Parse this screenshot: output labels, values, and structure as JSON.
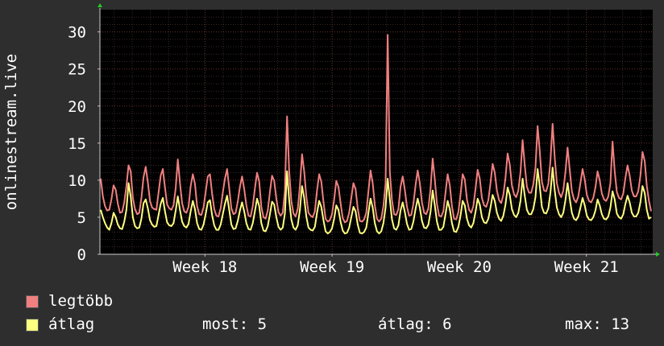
{
  "chart_data": {
    "type": "line",
    "ylabel": "onlinestream.live",
    "yticks": [
      0,
      5,
      10,
      15,
      20,
      25,
      30
    ],
    "ylim": [
      0,
      33
    ],
    "xlim": [
      0,
      100
    ],
    "xticks": [
      {
        "label": "Week 18",
        "x": 19
      },
      {
        "label": "Week 19",
        "x": 42
      },
      {
        "label": "Week 20",
        "x": 65
      },
      {
        "label": "Week 21",
        "x": 88
      }
    ],
    "grid": true,
    "legend_placement": "bottom-left",
    "series": [
      {
        "name": "legtöbb",
        "color": "#f08080",
        "values": [
          10.2,
          7.8,
          6.5,
          5.9,
          6.0,
          7.4,
          9.3,
          8.7,
          6.8,
          5.6,
          5.7,
          7.0,
          9.2,
          12.0,
          11.2,
          7.6,
          6.1,
          5.4,
          5.6,
          7.6,
          10.4,
          11.8,
          9.7,
          7.2,
          6.3,
          6.1,
          6.0,
          8.3,
          10.6,
          11.5,
          9.0,
          6.7,
          6.2,
          6.0,
          6.6,
          8.9,
          12.8,
          9.6,
          6.9,
          5.8,
          5.6,
          6.4,
          9.2,
          10.8,
          9.5,
          6.5,
          5.4,
          5.3,
          6.3,
          8.4,
          10.5,
          10.8,
          8.2,
          6.1,
          5.2,
          5.1,
          6.2,
          8.3,
          10.2,
          11.5,
          8.9,
          6.2,
          5.4,
          5.6,
          7.1,
          9.1,
          10.5,
          8.8,
          6.6,
          5.2,
          5.1,
          6.5,
          8.9,
          11.0,
          9.8,
          6.4,
          5.0,
          4.8,
          5.9,
          8.4,
          10.6,
          9.9,
          7.5,
          5.7,
          5.2,
          5.6,
          8.6,
          18.6,
          11.2,
          7.2,
          5.5,
          5.1,
          6.1,
          9.2,
          13.5,
          11.2,
          7.8,
          5.6,
          5.2,
          5.0,
          5.8,
          8.6,
          10.8,
          9.8,
          7.1,
          4.8,
          4.4,
          4.6,
          5.4,
          7.4,
          9.9,
          9.1,
          6.9,
          4.9,
          4.3,
          4.5,
          5.6,
          7.6,
          9.6,
          8.8,
          6.2,
          4.5,
          4.4,
          4.7,
          5.6,
          8.5,
          11.3,
          9.6,
          6.6,
          4.8,
          4.4,
          4.8,
          6.5,
          9.5,
          29.6,
          11.1,
          7.3,
          5.4,
          5.3,
          6.1,
          9.1,
          10.5,
          8.7,
          6.4,
          5.2,
          5.3,
          6.8,
          9.3,
          11.3,
          9.6,
          7.0,
          5.6,
          5.4,
          6.2,
          8.8,
          12.9,
          10.1,
          6.8,
          5.2,
          5.1,
          5.8,
          8.3,
          10.8,
          9.3,
          6.5,
          4.8,
          4.7,
          5.7,
          8.0,
          10.8,
          10.1,
          7.4,
          6.0,
          5.6,
          6.5,
          8.8,
          11.4,
          10.2,
          7.6,
          6.6,
          6.4,
          7.3,
          9.6,
          12.2,
          11.0,
          8.6,
          7.3,
          6.9,
          8.0,
          10.3,
          13.6,
          12.1,
          9.3,
          8.1,
          7.7,
          8.6,
          11.0,
          15.4,
          12.0,
          9.1,
          8.3,
          8.3,
          9.4,
          11.7,
          17.3,
          13.9,
          9.8,
          8.6,
          8.5,
          9.5,
          12.6,
          17.6,
          13.0,
          9.6,
          8.3,
          7.7,
          8.6,
          11.1,
          14.4,
          11.4,
          8.5,
          7.4,
          7.0,
          7.8,
          9.6,
          11.5,
          10.1,
          8.0,
          7.2,
          7.0,
          7.6,
          9.0,
          11.2,
          10.0,
          8.2,
          7.4,
          7.2,
          7.8,
          9.6,
          15.2,
          11.2,
          8.4,
          7.6,
          7.4,
          8.2,
          10.3,
          12.0,
          10.6,
          8.6,
          7.8,
          7.8,
          8.5,
          10.6,
          13.8,
          12.6,
          9.2,
          7.2,
          5.8
        ]
      },
      {
        "name": "átlag",
        "color": "#ffff80",
        "values": [
          6.0,
          5.0,
          4.2,
          3.6,
          3.3,
          4.2,
          5.6,
          5.0,
          4.0,
          3.5,
          3.4,
          4.4,
          6.0,
          9.6,
          7.8,
          5.0,
          3.8,
          3.5,
          3.6,
          4.8,
          6.9,
          7.4,
          6.2,
          4.6,
          4.0,
          3.7,
          3.8,
          5.3,
          6.8,
          7.6,
          5.8,
          4.3,
          3.9,
          3.8,
          4.2,
          5.9,
          7.8,
          6.0,
          4.4,
          3.8,
          3.6,
          4.1,
          5.8,
          7.2,
          6.1,
          4.2,
          3.4,
          3.3,
          4.0,
          5.4,
          7.0,
          7.3,
          5.3,
          3.9,
          3.3,
          3.3,
          4.0,
          5.4,
          6.8,
          7.9,
          6.0,
          4.0,
          3.4,
          3.5,
          4.5,
          5.9,
          7.0,
          5.8,
          4.2,
          3.4,
          3.3,
          4.2,
          5.8,
          7.5,
          6.5,
          4.2,
          3.2,
          3.1,
          3.8,
          5.4,
          7.1,
          6.7,
          5.0,
          3.7,
          3.3,
          3.6,
          5.5,
          11.2,
          7.3,
          4.7,
          3.6,
          3.3,
          3.9,
          6.0,
          9.2,
          7.6,
          5.1,
          3.6,
          3.3,
          3.2,
          3.7,
          5.6,
          7.2,
          6.4,
          4.6,
          3.1,
          2.8,
          3.0,
          3.5,
          4.8,
          6.6,
          6.0,
          4.4,
          3.2,
          2.8,
          2.9,
          3.6,
          5.0,
          6.4,
          5.8,
          4.0,
          2.9,
          2.8,
          3.0,
          3.6,
          5.6,
          7.5,
          6.3,
          4.2,
          3.1,
          2.8,
          3.1,
          4.2,
          6.3,
          10.2,
          7.4,
          4.7,
          3.5,
          3.3,
          3.9,
          5.9,
          7.0,
          5.7,
          4.1,
          3.3,
          3.4,
          4.4,
          6.1,
          7.5,
          6.3,
          4.5,
          3.6,
          3.5,
          4.0,
          5.7,
          8.6,
          6.6,
          4.4,
          3.3,
          3.3,
          3.7,
          5.4,
          7.2,
          6.1,
          4.2,
          3.1,
          3.0,
          3.7,
          5.2,
          7.2,
          6.6,
          4.8,
          3.9,
          3.6,
          4.2,
          5.7,
          7.5,
          6.7,
          5.0,
          4.3,
          4.2,
          4.8,
          6.3,
          8.0,
          7.2,
          5.6,
          4.8,
          4.5,
          5.2,
          6.7,
          9.0,
          8.0,
          6.1,
          5.3,
          5.0,
          5.6,
          7.2,
          10.2,
          7.9,
          6.0,
          5.4,
          5.4,
          6.1,
          7.7,
          11.5,
          9.2,
          6.4,
          5.6,
          5.5,
          6.2,
          8.3,
          11.7,
          8.6,
          6.3,
          5.4,
          5.0,
          5.6,
          7.3,
          9.6,
          7.5,
          5.6,
          4.8,
          4.6,
          5.1,
          6.3,
          7.6,
          6.6,
          5.2,
          4.7,
          4.6,
          5.0,
          5.9,
          7.4,
          6.6,
          5.4,
          4.8,
          4.7,
          5.1,
          6.3,
          8.5,
          7.4,
          5.5,
          5.0,
          4.8,
          5.4,
          6.8,
          7.9,
          7.0,
          5.6,
          5.1,
          5.1,
          5.6,
          7.0,
          9.2,
          8.3,
          6.0,
          4.8,
          5.0
        ]
      }
    ]
  },
  "legend": {
    "max_label": "legtöbb",
    "avg_label": "átlag",
    "max_color": "#f08080",
    "avg_color": "#ffff80"
  },
  "stats": {
    "current": "most: 5",
    "average": "átlag: 6",
    "maximum": "max: 13"
  }
}
